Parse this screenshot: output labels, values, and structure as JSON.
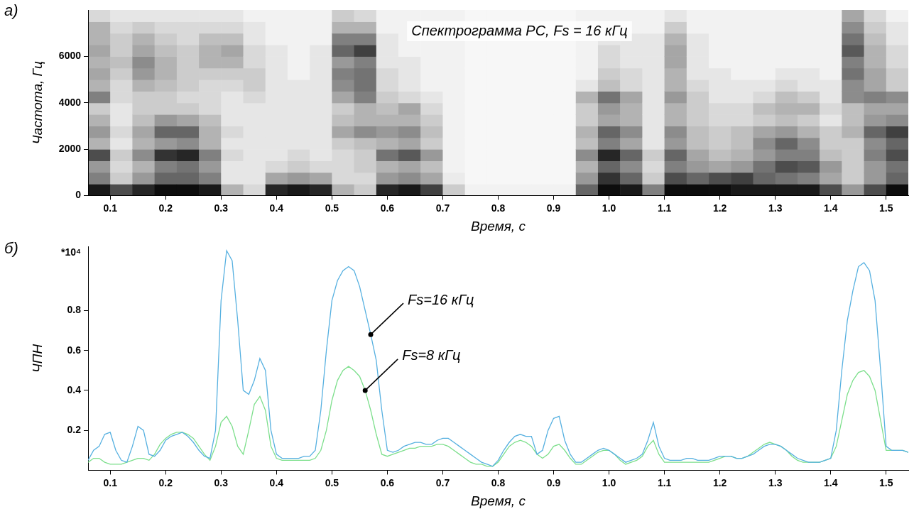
{
  "chart_data": [
    {
      "type": "heatmap",
      "panel": "а)",
      "title": "Спектрограмма РС, Fs = 16 кГц",
      "xlabel": "Время, с",
      "ylabel": "Частота, Гц",
      "xlim": [
        0.06,
        1.54
      ],
      "ylim": [
        0,
        8000
      ],
      "xticks": [
        0.1,
        0.2,
        0.3,
        0.4,
        0.5,
        0.6,
        0.7,
        0.8,
        0.9,
        {
          "value": 1,
          "label": "1.0"
        },
        1.1,
        1.2,
        1.3,
        1.4,
        1.5
      ],
      "yticks": [
        0,
        2000,
        4000,
        6000
      ],
      "grid": false,
      "x_edges": [
        0.06,
        0.1,
        0.14,
        0.18,
        0.22,
        0.26,
        0.3,
        0.34,
        0.38,
        0.42,
        0.46,
        0.5,
        0.54,
        0.58,
        0.62,
        0.66,
        0.7,
        0.74,
        0.78,
        0.82,
        0.86,
        0.9,
        0.94,
        0.98,
        1.02,
        1.06,
        1.1,
        1.14,
        1.18,
        1.22,
        1.26,
        1.3,
        1.34,
        1.38,
        1.42,
        1.46,
        1.5,
        1.54
      ],
      "y_edges": [
        0,
        500,
        1000,
        1500,
        2000,
        2500,
        3000,
        3500,
        4000,
        4500,
        5000,
        5500,
        6000,
        6500,
        7000,
        7500,
        8000
      ],
      "cells": [
        [
          0.9,
          0.5,
          0.4,
          0.7,
          0.3,
          0.4,
          0.3,
          0.2,
          0.5,
          0.3,
          0.35,
          0.3,
          0.35,
          0.3,
          0.3,
          0.15
        ],
        [
          0.7,
          0.2,
          0.15,
          0.2,
          0.1,
          0.15,
          0.1,
          0.1,
          0.15,
          0.15,
          0.2,
          0.25,
          0.2,
          0.2,
          0.15,
          0.1
        ],
        [
          0.85,
          0.4,
          0.3,
          0.45,
          0.3,
          0.35,
          0.25,
          0.2,
          0.2,
          0.3,
          0.4,
          0.45,
          0.35,
          0.3,
          0.2,
          0.1
        ],
        [
          0.95,
          0.6,
          0.5,
          0.8,
          0.4,
          0.6,
          0.4,
          0.2,
          0.2,
          0.25,
          0.3,
          0.3,
          0.25,
          0.2,
          0.15,
          0.1
        ],
        [
          0.95,
          0.6,
          0.55,
          0.85,
          0.45,
          0.6,
          0.35,
          0.2,
          0.15,
          0.2,
          0.2,
          0.2,
          0.2,
          0.15,
          0.15,
          0.1
        ],
        [
          0.9,
          0.5,
          0.4,
          0.5,
          0.3,
          0.3,
          0.25,
          0.15,
          0.15,
          0.15,
          0.2,
          0.3,
          0.3,
          0.25,
          0.15,
          0.1
        ],
        [
          0.3,
          0.1,
          0.1,
          0.15,
          0.1,
          0.15,
          0.1,
          0.1,
          0.1,
          0.15,
          0.2,
          0.3,
          0.35,
          0.25,
          0.15,
          0.1
        ],
        [
          0.15,
          0.1,
          0.1,
          0.1,
          0.1,
          0.1,
          0.1,
          0.1,
          0.15,
          0.2,
          0.2,
          0.15,
          0.15,
          0.1,
          0.1,
          0.05
        ],
        [
          0.85,
          0.35,
          0.15,
          0.1,
          0.1,
          0.1,
          0.1,
          0.1,
          0.1,
          0.1,
          0.1,
          0.1,
          0.1,
          0.05,
          0.05,
          0.05
        ],
        [
          0.9,
          0.4,
          0.2,
          0.15,
          0.1,
          0.1,
          0.1,
          0.1,
          0.1,
          0.1,
          0.05,
          0.05,
          0.05,
          0.05,
          0.05,
          0.05
        ],
        [
          0.85,
          0.35,
          0.15,
          0.1,
          0.1,
          0.1,
          0.1,
          0.1,
          0.1,
          0.1,
          0.1,
          0.1,
          0.1,
          0.05,
          0.05,
          0.05
        ],
        [
          0.3,
          0.15,
          0.15,
          0.15,
          0.2,
          0.35,
          0.25,
          0.2,
          0.35,
          0.45,
          0.5,
          0.4,
          0.6,
          0.5,
          0.3,
          0.2
        ],
        [
          0.2,
          0.15,
          0.2,
          0.2,
          0.25,
          0.45,
          0.3,
          0.3,
          0.5,
          0.55,
          0.55,
          0.5,
          0.75,
          0.5,
          0.3,
          0.15
        ],
        [
          0.85,
          0.4,
          0.3,
          0.55,
          0.3,
          0.4,
          0.3,
          0.25,
          0.2,
          0.15,
          0.15,
          0.1,
          0.1,
          0.1,
          0.05,
          0.05
        ],
        [
          0.9,
          0.45,
          0.35,
          0.65,
          0.35,
          0.45,
          0.3,
          0.35,
          0.15,
          0.1,
          0.1,
          0.1,
          0.05,
          0.05,
          0.05,
          0.05
        ],
        [
          0.75,
          0.35,
          0.25,
          0.4,
          0.2,
          0.25,
          0.2,
          0.15,
          0.1,
          0.05,
          0.05,
          0.05,
          0.05,
          0.05,
          0.05,
          0.05
        ],
        [
          0.2,
          0.08,
          0.05,
          0.05,
          0.05,
          0.05,
          0.05,
          0.05,
          0.05,
          0.05,
          0.05,
          0.05,
          0.05,
          0.05,
          0.05,
          0.05
        ],
        [
          0.05,
          0.03,
          0.03,
          0.03,
          0.03,
          0.03,
          0.03,
          0.03,
          0.03,
          0.03,
          0.03,
          0.03,
          0.03,
          0.03,
          0.03,
          0.03
        ],
        [
          0.05,
          0.03,
          0.03,
          0.03,
          0.03,
          0.03,
          0.03,
          0.03,
          0.03,
          0.03,
          0.03,
          0.03,
          0.03,
          0.03,
          0.03,
          0.03
        ],
        [
          0.05,
          0.03,
          0.03,
          0.03,
          0.03,
          0.03,
          0.03,
          0.03,
          0.03,
          0.03,
          0.03,
          0.03,
          0.03,
          0.03,
          0.03,
          0.03
        ],
        [
          0.05,
          0.03,
          0.03,
          0.03,
          0.03,
          0.03,
          0.03,
          0.03,
          0.03,
          0.03,
          0.03,
          0.03,
          0.03,
          0.03,
          0.03,
          0.03
        ],
        [
          0.05,
          0.03,
          0.03,
          0.03,
          0.03,
          0.03,
          0.03,
          0.03,
          0.03,
          0.03,
          0.03,
          0.03,
          0.03,
          0.03,
          0.03,
          0.03
        ],
        [
          0.6,
          0.4,
          0.3,
          0.45,
          0.25,
          0.3,
          0.2,
          0.2,
          0.3,
          0.1,
          0.05,
          0.05,
          0.05,
          0.05,
          0.05,
          0.05
        ],
        [
          0.95,
          0.8,
          0.6,
          0.85,
          0.5,
          0.6,
          0.35,
          0.4,
          0.55,
          0.25,
          0.2,
          0.15,
          0.15,
          0.1,
          0.1,
          0.05
        ],
        [
          0.9,
          0.6,
          0.45,
          0.6,
          0.35,
          0.45,
          0.3,
          0.3,
          0.35,
          0.15,
          0.15,
          0.1,
          0.1,
          0.1,
          0.05,
          0.05
        ],
        [
          0.5,
          0.2,
          0.15,
          0.2,
          0.1,
          0.1,
          0.1,
          0.1,
          0.1,
          0.1,
          0.1,
          0.1,
          0.1,
          0.1,
          0.05,
          0.05
        ],
        [
          0.95,
          0.7,
          0.5,
          0.6,
          0.4,
          0.45,
          0.3,
          0.3,
          0.4,
          0.3,
          0.3,
          0.35,
          0.35,
          0.3,
          0.2,
          0.1
        ],
        [
          0.95,
          0.6,
          0.4,
          0.35,
          0.25,
          0.25,
          0.2,
          0.2,
          0.2,
          0.15,
          0.1,
          0.1,
          0.1,
          0.1,
          0.05,
          0.05
        ],
        [
          0.95,
          0.7,
          0.35,
          0.25,
          0.2,
          0.2,
          0.15,
          0.15,
          0.1,
          0.1,
          0.1,
          0.05,
          0.05,
          0.05,
          0.05,
          0.05
        ],
        [
          0.9,
          0.75,
          0.4,
          0.3,
          0.25,
          0.25,
          0.15,
          0.15,
          0.1,
          0.1,
          0.05,
          0.05,
          0.05,
          0.05,
          0.05,
          0.05
        ],
        [
          0.9,
          0.6,
          0.55,
          0.4,
          0.45,
          0.35,
          0.2,
          0.25,
          0.15,
          0.1,
          0.05,
          0.05,
          0.05,
          0.05,
          0.05,
          0.05
        ],
        [
          0.9,
          0.55,
          0.7,
          0.5,
          0.6,
          0.4,
          0.25,
          0.3,
          0.25,
          0.15,
          0.1,
          0.05,
          0.05,
          0.05,
          0.05,
          0.05
        ],
        [
          0.9,
          0.5,
          0.65,
          0.5,
          0.45,
          0.3,
          0.2,
          0.3,
          0.2,
          0.1,
          0.1,
          0.05,
          0.05,
          0.05,
          0.05,
          0.05
        ],
        [
          0.7,
          0.35,
          0.4,
          0.25,
          0.2,
          0.2,
          0.1,
          0.15,
          0.1,
          0.1,
          0.05,
          0.05,
          0.05,
          0.05,
          0.05,
          0.05
        ],
        [
          0.4,
          0.2,
          0.2,
          0.2,
          0.2,
          0.3,
          0.25,
          0.25,
          0.45,
          0.45,
          0.55,
          0.5,
          0.65,
          0.55,
          0.45,
          0.35
        ],
        [
          0.7,
          0.4,
          0.4,
          0.5,
          0.45,
          0.6,
          0.4,
          0.35,
          0.5,
          0.35,
          0.35,
          0.3,
          0.3,
          0.25,
          0.2,
          0.15
        ],
        [
          0.95,
          0.6,
          0.55,
          0.7,
          0.6,
          0.75,
          0.45,
          0.35,
          0.45,
          0.2,
          0.2,
          0.15,
          0.15,
          0.1,
          0.1,
          0.05
        ]
      ]
    },
    {
      "type": "line",
      "panel": "б)",
      "xlabel": "Время, с",
      "ylabel": "ЧПН",
      "y_multiplier": "*10⁴",
      "xlim": [
        0.06,
        1.54
      ],
      "ylim": [
        0,
        1.12
      ],
      "xticks": [
        0.1,
        0.2,
        0.3,
        0.4,
        0.5,
        0.6,
        0.7,
        0.8,
        0.9,
        {
          "value": 1,
          "label": "1.0"
        },
        1.1,
        1.2,
        1.3,
        1.4,
        1.5
      ],
      "yticks": [
        0.2,
        0.4,
        0.6,
        0.8
      ],
      "grid": false,
      "x": [
        0.06,
        0.07,
        0.08,
        0.09,
        0.1,
        0.11,
        0.12,
        0.13,
        0.14,
        0.15,
        0.16,
        0.17,
        0.18,
        0.19,
        0.2,
        0.21,
        0.22,
        0.23,
        0.24,
        0.25,
        0.26,
        0.27,
        0.28,
        0.29,
        0.3,
        0.31,
        0.32,
        0.33,
        0.34,
        0.35,
        0.36,
        0.37,
        0.38,
        0.39,
        0.4,
        0.41,
        0.42,
        0.43,
        0.44,
        0.45,
        0.46,
        0.47,
        0.48,
        0.49,
        0.5,
        0.51,
        0.52,
        0.53,
        0.54,
        0.55,
        0.56,
        0.57,
        0.58,
        0.59,
        0.6,
        0.61,
        0.62,
        0.63,
        0.64,
        0.65,
        0.66,
        0.67,
        0.68,
        0.69,
        0.7,
        0.71,
        0.72,
        0.73,
        0.74,
        0.75,
        0.76,
        0.77,
        0.78,
        0.79,
        0.8,
        0.81,
        0.82,
        0.83,
        0.84,
        0.85,
        0.86,
        0.87,
        0.88,
        0.89,
        0.9,
        0.91,
        0.92,
        0.93,
        0.94,
        0.95,
        0.96,
        0.97,
        0.98,
        0.99,
        1.0,
        1.01,
        1.02,
        1.03,
        1.04,
        1.05,
        1.06,
        1.07,
        1.08,
        1.09,
        1.1,
        1.11,
        1.12,
        1.13,
        1.14,
        1.15,
        1.16,
        1.17,
        1.18,
        1.19,
        1.2,
        1.21,
        1.22,
        1.23,
        1.24,
        1.25,
        1.26,
        1.27,
        1.28,
        1.29,
        1.3,
        1.31,
        1.32,
        1.33,
        1.34,
        1.35,
        1.36,
        1.37,
        1.38,
        1.39,
        1.4,
        1.41,
        1.42,
        1.43,
        1.44,
        1.45,
        1.46,
        1.47,
        1.48,
        1.49,
        1.5,
        1.51,
        1.52,
        1.53,
        1.54
      ],
      "series": [
        {
          "name": "Fs=16 кГц",
          "color": "#56b0e0",
          "type": "line",
          "label_point": [
            0.57,
            0.68
          ],
          "values": [
            0.05,
            0.1,
            0.12,
            0.18,
            0.19,
            0.1,
            0.05,
            0.04,
            0.12,
            0.22,
            0.2,
            0.08,
            0.07,
            0.1,
            0.15,
            0.17,
            0.18,
            0.19,
            0.17,
            0.14,
            0.1,
            0.07,
            0.06,
            0.2,
            0.85,
            1.1,
            1.05,
            0.75,
            0.4,
            0.38,
            0.45,
            0.56,
            0.5,
            0.2,
            0.08,
            0.06,
            0.06,
            0.06,
            0.06,
            0.07,
            0.07,
            0.1,
            0.3,
            0.6,
            0.85,
            0.95,
            1.0,
            1.02,
            1.0,
            0.92,
            0.8,
            0.68,
            0.55,
            0.3,
            0.1,
            0.09,
            0.1,
            0.12,
            0.13,
            0.14,
            0.14,
            0.13,
            0.13,
            0.15,
            0.16,
            0.16,
            0.14,
            0.12,
            0.1,
            0.08,
            0.06,
            0.04,
            0.03,
            0.02,
            0.05,
            0.1,
            0.14,
            0.17,
            0.18,
            0.17,
            0.17,
            0.08,
            0.1,
            0.2,
            0.26,
            0.27,
            0.15,
            0.08,
            0.04,
            0.04,
            0.06,
            0.08,
            0.1,
            0.11,
            0.1,
            0.08,
            0.06,
            0.04,
            0.05,
            0.06,
            0.08,
            0.15,
            0.24,
            0.12,
            0.06,
            0.05,
            0.05,
            0.05,
            0.06,
            0.06,
            0.05,
            0.05,
            0.05,
            0.06,
            0.07,
            0.07,
            0.07,
            0.06,
            0.06,
            0.07,
            0.08,
            0.1,
            0.12,
            0.13,
            0.13,
            0.12,
            0.1,
            0.08,
            0.06,
            0.05,
            0.04,
            0.04,
            0.04,
            0.05,
            0.06,
            0.2,
            0.5,
            0.75,
            0.9,
            1.02,
            1.04,
            1.0,
            0.85,
            0.5,
            0.12,
            0.1,
            0.1,
            0.1,
            0.09
          ]
        },
        {
          "name": "Fs=8 кГц",
          "color": "#7ddf8c",
          "type": "line",
          "label_point": [
            0.56,
            0.4
          ],
          "values": [
            0.04,
            0.06,
            0.06,
            0.04,
            0.03,
            0.03,
            0.03,
            0.04,
            0.05,
            0.06,
            0.06,
            0.05,
            0.08,
            0.13,
            0.16,
            0.18,
            0.19,
            0.19,
            0.18,
            0.16,
            0.12,
            0.08,
            0.05,
            0.12,
            0.24,
            0.27,
            0.22,
            0.12,
            0.08,
            0.2,
            0.33,
            0.37,
            0.3,
            0.12,
            0.06,
            0.05,
            0.05,
            0.05,
            0.05,
            0.05,
            0.05,
            0.06,
            0.1,
            0.2,
            0.35,
            0.45,
            0.5,
            0.52,
            0.5,
            0.47,
            0.4,
            0.3,
            0.18,
            0.08,
            0.07,
            0.08,
            0.09,
            0.1,
            0.11,
            0.11,
            0.12,
            0.12,
            0.12,
            0.13,
            0.13,
            0.12,
            0.1,
            0.08,
            0.06,
            0.04,
            0.03,
            0.03,
            0.02,
            0.02,
            0.04,
            0.08,
            0.12,
            0.14,
            0.15,
            0.14,
            0.12,
            0.08,
            0.06,
            0.08,
            0.12,
            0.13,
            0.1,
            0.06,
            0.03,
            0.03,
            0.05,
            0.07,
            0.09,
            0.1,
            0.1,
            0.08,
            0.05,
            0.03,
            0.04,
            0.05,
            0.07,
            0.12,
            0.15,
            0.08,
            0.04,
            0.04,
            0.04,
            0.04,
            0.04,
            0.04,
            0.04,
            0.04,
            0.04,
            0.05,
            0.06,
            0.07,
            0.07,
            0.06,
            0.06,
            0.07,
            0.09,
            0.11,
            0.13,
            0.14,
            0.13,
            0.12,
            0.1,
            0.07,
            0.05,
            0.04,
            0.04,
            0.04,
            0.04,
            0.05,
            0.06,
            0.12,
            0.25,
            0.38,
            0.45,
            0.49,
            0.5,
            0.47,
            0.4,
            0.25,
            0.1,
            0.1,
            0.1,
            0.1,
            0.09
          ]
        }
      ]
    }
  ]
}
